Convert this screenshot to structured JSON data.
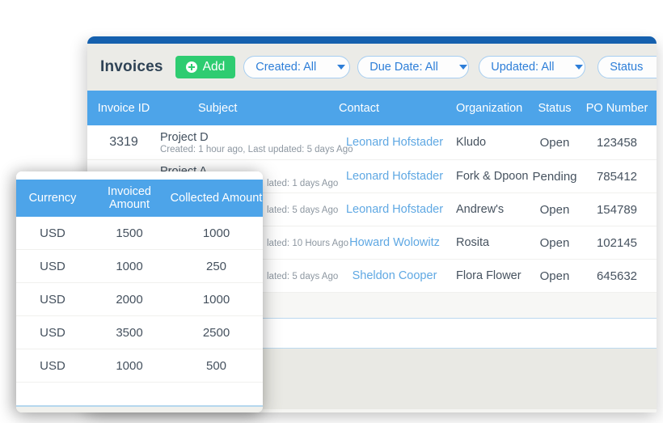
{
  "colors": {
    "top_accent": "#1560ae",
    "toolbar_bg": "#ebebe7",
    "table_header_blue": "#4da4e9",
    "add_green": "#2ecc71",
    "filter_blue": "#2d7ed8",
    "link_blue": "#5fa8e3"
  },
  "main_panel": {
    "title": "Invoices",
    "add_button_label": "Add",
    "filters": [
      {
        "label": "Created: All"
      },
      {
        "label": "Due Date: All"
      },
      {
        "label": "Updated: All"
      },
      {
        "label": "Status"
      }
    ],
    "table": {
      "columns": [
        "Invoice ID",
        "Subject",
        "Contact",
        "Organization",
        "Status",
        "PO Number"
      ],
      "rows": [
        {
          "invoice_id": "3319",
          "subject": "Project D",
          "subject_note": "Created: 1 hour ago, Last updated: 5 days Ago",
          "contact": "Leonard Hofstader",
          "organization": "Kludo",
          "status": "Open",
          "po_number": "123458"
        },
        {
          "invoice_id": "",
          "subject": "Project A",
          "subject_note": "lated: 1 days Ago",
          "contact": "Leonard Hofstader",
          "organization": "Fork & Dpoon",
          "status": "Pending",
          "po_number": "785412"
        },
        {
          "invoice_id": "",
          "subject": "",
          "subject_note": "lated: 5 days Ago",
          "contact": "Leonard Hofstader",
          "organization": "Andrew's",
          "status": "Open",
          "po_number": "154789"
        },
        {
          "invoice_id": "",
          "subject": "",
          "subject_note": "lated: 10 Hours Ago",
          "contact": "Howard Wolowitz",
          "organization": "Rosita",
          "status": "Open",
          "po_number": "102145"
        },
        {
          "invoice_id": "",
          "subject": "",
          "subject_note": "lated: 5 days Ago",
          "contact": "Sheldon Cooper",
          "organization": "Flora Flower",
          "status": "Open",
          "po_number": "645632"
        }
      ]
    }
  },
  "overlay_panel": {
    "columns": [
      "Currency",
      "Invoiced Amount",
      "Collected Amount"
    ],
    "rows": [
      {
        "currency": "USD",
        "invoiced": "1500",
        "collected": "1000"
      },
      {
        "currency": "USD",
        "invoiced": "1000",
        "collected": "250"
      },
      {
        "currency": "USD",
        "invoiced": "2000",
        "collected": "1000"
      },
      {
        "currency": "USD",
        "invoiced": "3500",
        "collected": "2500"
      },
      {
        "currency": "USD",
        "invoiced": "1000",
        "collected": "500"
      }
    ]
  }
}
